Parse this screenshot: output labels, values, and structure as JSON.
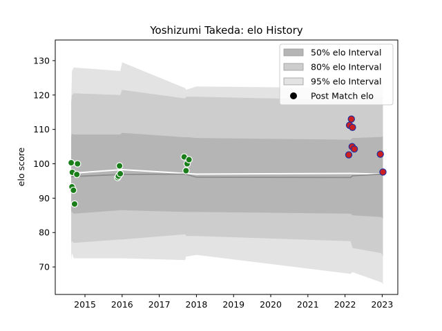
{
  "chart_data": {
    "type": "line",
    "title": "Yoshizumi Takeda: elo History",
    "xlabel": "",
    "ylabel": "elo score",
    "xlim": [
      2014.2,
      2023.42
    ],
    "ylim": [
      62,
      136
    ],
    "xticks": [
      2015,
      2016,
      2017,
      2018,
      2019,
      2020,
      2021,
      2022,
      2023
    ],
    "yticks": [
      70,
      80,
      90,
      100,
      110,
      120,
      130
    ],
    "grid": false,
    "legend_position": "top-right",
    "bands": [
      {
        "name": "95% elo Interval",
        "color": "#e3e3e3",
        "x": [
          2014.63,
          2014.65,
          2014.7,
          2015.95,
          2016.0,
          2017.7,
          2017.72,
          2018.0,
          2022.15,
          2022.2,
          2022.98,
          2023.02
        ],
        "upper": [
          118,
          127,
          128,
          127,
          129.5,
          122,
          121.5,
          122.5,
          122,
          122.5,
          124,
          124
        ],
        "lower": [
          72,
          74,
          72.5,
          72.5,
          72.5,
          72,
          73,
          73.5,
          68,
          68.5,
          65.5,
          65
        ]
      },
      {
        "name": "80% elo Interval",
        "color": "#cdcdcd",
        "x": [
          2014.63,
          2014.65,
          2014.7,
          2015.95,
          2016.0,
          2017.7,
          2017.72,
          2018.0,
          2022.15,
          2022.2,
          2022.98,
          2023.02
        ],
        "upper": [
          118,
          120,
          120.5,
          120,
          121.5,
          119,
          119.5,
          119.5,
          118.5,
          119,
          119.5,
          120
        ],
        "lower": [
          77,
          77.5,
          77,
          78,
          78,
          79.5,
          79,
          79,
          77.5,
          75.5,
          74,
          73
        ]
      },
      {
        "name": "50% elo Interval",
        "color": "#b5b5b5",
        "x": [
          2014.63,
          2014.65,
          2014.7,
          2015.95,
          2016.0,
          2017.7,
          2017.72,
          2018.0,
          2022.15,
          2022.2,
          2022.98,
          2023.02
        ],
        "upper": [
          108,
          108.7,
          108.5,
          108.5,
          109,
          107.7,
          107.8,
          107.5,
          107,
          107.5,
          107.8,
          108
        ],
        "lower": [
          86,
          86,
          85.5,
          86.5,
          86.5,
          86,
          86,
          86,
          85.5,
          85,
          84.5,
          84
        ]
      }
    ],
    "lines": [
      {
        "role": "median",
        "color": "#ffffff",
        "width": 2,
        "x": [
          2014.63,
          2014.7,
          2016.0,
          2017.7,
          2018.0,
          2022.15,
          2023.02
        ],
        "y": [
          97,
          97.3,
          98.3,
          97.2,
          97,
          97.2,
          97
        ]
      },
      {
        "role": "mean",
        "color": "#8a8a8a",
        "width": 1.6,
        "x": [
          2014.63,
          2014.7,
          2016.0,
          2017.7,
          2018.0,
          2022.15,
          2022.2,
          2023.02
        ],
        "y": [
          96.2,
          96.3,
          96.9,
          97.0,
          96.1,
          96.0,
          96.5,
          97.0
        ]
      }
    ],
    "series": [
      {
        "name": "Post Match elo",
        "legend_color": "#000000",
        "points": [
          {
            "x": 2014.63,
            "y": 100.3,
            "fill": "#1a7f1a",
            "stroke": "#ffffff"
          },
          {
            "x": 2014.66,
            "y": 97.5,
            "fill": "#1a7f1a",
            "stroke": "#ffffff"
          },
          {
            "x": 2014.65,
            "y": 93.3,
            "fill": "#1a7f1a",
            "stroke": "#ffffff"
          },
          {
            "x": 2014.69,
            "y": 92.3,
            "fill": "#1a7f1a",
            "stroke": "#ffffff"
          },
          {
            "x": 2014.72,
            "y": 88.3,
            "fill": "#1a7f1a",
            "stroke": "#ffffff"
          },
          {
            "x": 2014.78,
            "y": 96.9,
            "fill": "#1a7f1a",
            "stroke": "#ffffff"
          },
          {
            "x": 2014.8,
            "y": 100.0,
            "fill": "#1a7f1a",
            "stroke": "#ffffff"
          },
          {
            "x": 2015.88,
            "y": 96.0,
            "fill": "#1a7f1a",
            "stroke": "#ffffff"
          },
          {
            "x": 2015.9,
            "y": 96.4,
            "fill": "#1a7f1a",
            "stroke": "#ffffff"
          },
          {
            "x": 2015.93,
            "y": 99.4,
            "fill": "#1a7f1a",
            "stroke": "#ffffff"
          },
          {
            "x": 2015.95,
            "y": 97.1,
            "fill": "#1a7f1a",
            "stroke": "#ffffff"
          },
          {
            "x": 2017.67,
            "y": 102.0,
            "fill": "#1a7f1a",
            "stroke": "#ffffff"
          },
          {
            "x": 2017.72,
            "y": 98.0,
            "fill": "#1a7f1a",
            "stroke": "#ffffff"
          },
          {
            "x": 2017.75,
            "y": 100.0,
            "fill": "#1a7f1a",
            "stroke": "#ffffff"
          },
          {
            "x": 2017.8,
            "y": 101.2,
            "fill": "#1a7f1a",
            "stroke": "#ffffff"
          },
          {
            "x": 2022.1,
            "y": 102.6,
            "fill": "#cc1f1f",
            "stroke": "#1f2fa0"
          },
          {
            "x": 2022.12,
            "y": 111.2,
            "fill": "#cc1f1f",
            "stroke": "#1f2fa0"
          },
          {
            "x": 2022.17,
            "y": 113.0,
            "fill": "#cc1f1f",
            "stroke": "#1f2fa0"
          },
          {
            "x": 2022.2,
            "y": 110.6,
            "fill": "#cc1f1f",
            "stroke": "#1f2fa0"
          },
          {
            "x": 2022.19,
            "y": 105.0,
            "fill": "#cc1f1f",
            "stroke": "#1f2fa0"
          },
          {
            "x": 2022.25,
            "y": 104.3,
            "fill": "#cc1f1f",
            "stroke": "#1f2fa0"
          },
          {
            "x": 2022.95,
            "y": 102.8,
            "fill": "#cc1f1f",
            "stroke": "#1f2fa0"
          },
          {
            "x": 2023.02,
            "y": 97.6,
            "fill": "#cc1f1f",
            "stroke": "#1f2fa0"
          }
        ]
      }
    ],
    "legend": [
      {
        "label": "50% elo Interval",
        "kind": "patch",
        "color": "#b5b5b5"
      },
      {
        "label": "80% elo Interval",
        "kind": "patch",
        "color": "#cdcdcd"
      },
      {
        "label": "95% elo Interval",
        "kind": "patch",
        "color": "#e3e3e3"
      },
      {
        "label": "Post Match elo",
        "kind": "marker",
        "color": "#000000"
      }
    ]
  }
}
